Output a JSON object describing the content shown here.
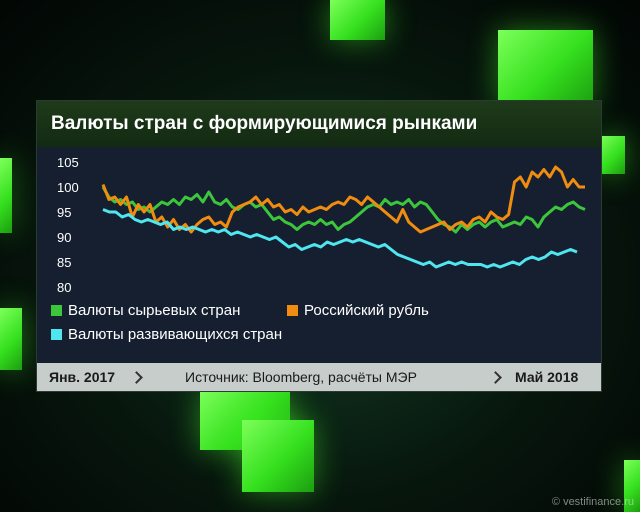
{
  "header": {
    "title": "Валюты стран с формирующимися рынками"
  },
  "footer": {
    "start": "Янв. 2017",
    "source": "Источник: Bloomberg, расчёты МЭР",
    "end": "Май 2018"
  },
  "watermark": "© vestifinance.ru",
  "colors": {
    "green": "#3cc63c",
    "orange": "#f08c10",
    "cyan": "#4fe6f0",
    "background": "#151f2f",
    "accent": "#44ff22"
  },
  "chart_data": {
    "type": "line",
    "title": "Валюты стран с формирующимися рынками",
    "xlabel": "",
    "ylabel": "",
    "ylim": [
      80,
      105
    ],
    "yticks": [
      105,
      100,
      95,
      90,
      85,
      80
    ],
    "x_range_labels": [
      "Янв. 2017",
      "Май 2018"
    ],
    "grid": false,
    "legend_position": "bottom",
    "series": [
      {
        "name": "Валюты сырьевых стран",
        "color": "#3cc63c",
        "values": [
          100.0,
          98.0,
          97.0,
          97.5,
          96.5,
          97.0,
          95.5,
          96.0,
          95.0,
          96.0,
          97.0,
          96.5,
          97.5,
          96.5,
          98.0,
          97.5,
          98.5,
          97.0,
          99.0,
          97.0,
          96.5,
          97.5,
          96.0,
          95.5,
          96.5,
          97.0,
          96.0,
          96.5,
          95.0,
          93.5,
          94.0,
          93.0,
          92.5,
          91.5,
          92.5,
          93.0,
          92.5,
          93.5,
          92.5,
          93.0,
          91.5,
          92.5,
          93.0,
          94.0,
          95.0,
          96.0,
          96.5,
          96.0,
          97.5,
          96.5,
          97.0,
          96.5,
          97.5,
          96.0,
          97.0,
          96.5,
          95.0,
          93.5,
          92.5,
          92.0,
          91.0,
          92.5,
          91.5,
          92.5,
          93.0,
          92.0,
          93.0,
          93.5,
          92.0,
          92.5,
          93.0,
          92.5,
          94.0,
          93.5,
          92.0,
          94.0,
          95.0,
          96.0,
          95.5,
          96.5,
          97.0,
          96.0,
          95.5
        ]
      },
      {
        "name": "Российский рубль",
        "color": "#f08c10",
        "values": [
          100.5,
          97.5,
          98.0,
          96.5,
          98.0,
          94.0,
          96.5,
          95.0,
          96.5,
          93.0,
          94.0,
          92.0,
          93.5,
          91.5,
          92.5,
          91.0,
          92.5,
          93.5,
          94.0,
          92.5,
          93.0,
          92.0,
          95.0,
          96.0,
          96.5,
          97.0,
          98.0,
          96.5,
          97.5,
          96.0,
          96.5,
          95.0,
          95.5,
          94.5,
          96.0,
          95.0,
          95.5,
          96.0,
          95.5,
          96.5,
          97.0,
          96.5,
          98.0,
          97.5,
          96.5,
          98.0,
          97.0,
          96.0,
          95.0,
          94.0,
          93.0,
          95.5,
          93.0,
          92.0,
          91.0,
          91.5,
          92.0,
          92.5,
          93.0,
          91.5,
          92.5,
          93.0,
          92.0,
          93.5,
          94.0,
          93.0,
          95.0,
          94.0,
          93.5,
          94.5,
          101.0,
          102.0,
          100.0,
          103.0,
          102.0,
          103.5,
          102.0,
          104.0,
          103.0,
          100.0,
          101.5,
          100.0,
          100.0
        ]
      },
      {
        "name": "Валюты развивающихся стран",
        "color": "#4fe6f0",
        "values": [
          95.5,
          95.0,
          95.0,
          94.0,
          94.5,
          93.5,
          93.0,
          93.5,
          93.0,
          92.5,
          93.0,
          91.5,
          92.0,
          91.5,
          92.0,
          91.5,
          91.0,
          91.5,
          91.0,
          91.5,
          90.5,
          91.0,
          90.5,
          90.0,
          90.5,
          90.0,
          89.5,
          90.0,
          89.0,
          88.0,
          88.5,
          87.5,
          88.0,
          88.5,
          88.0,
          89.0,
          88.5,
          89.0,
          89.5,
          89.0,
          89.5,
          89.0,
          88.5,
          88.0,
          88.5,
          87.5,
          86.5,
          86.0,
          85.5,
          85.0,
          84.5,
          85.0,
          84.0,
          84.5,
          85.0,
          84.5,
          85.0,
          84.5,
          84.5,
          84.5,
          84.0,
          84.5,
          84.0,
          84.5,
          85.0,
          84.5,
          85.5,
          86.0,
          85.5,
          86.0,
          87.0,
          86.5,
          87.0,
          87.5,
          87.0
        ]
      }
    ]
  }
}
